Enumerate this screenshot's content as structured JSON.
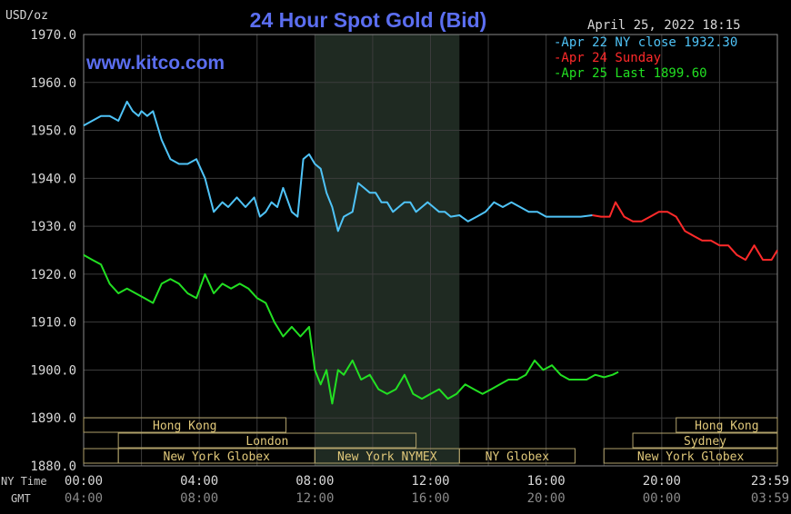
{
  "chart_data": {
    "type": "line",
    "title": "24 Hour Spot Gold (Bid)",
    "watermark": "www.kitco.com",
    "unit_label": "USD/oz",
    "timestamp": "April 25, 2022 18:15",
    "ylim": [
      1880,
      1970
    ],
    "y_ticks": [
      "1970.0",
      "1960.0",
      "1950.0",
      "1940.0",
      "1930.0",
      "1920.0",
      "1910.0",
      "1900.0",
      "1890.0",
      "1880.0"
    ],
    "x_row_label": "NY Time",
    "x_ticks": [
      "00:00",
      "04:00",
      "08:00",
      "12:00",
      "16:00",
      "20:00",
      "23:59"
    ],
    "gmt_row_label": "GMT",
    "gmt_ticks": [
      "04:00",
      "08:00",
      "12:00",
      "16:00",
      "20:00",
      "00:00",
      "03:59"
    ],
    "highlight": [
      8.0,
      13.0
    ],
    "legend": [
      {
        "text": "-Apr 22 NY close 1932.30",
        "color": "#4fc3f7"
      },
      {
        "text": "-Apr 24 Sunday",
        "color": "#ff2a2a"
      },
      {
        "text": "-Apr 25 Last 1899.60",
        "color": "#22e022"
      }
    ],
    "series": [
      {
        "name": "Apr 22",
        "color": "#4fc3f7",
        "x": [
          0,
          0.3,
          0.6,
          0.9,
          1.2,
          1.5,
          1.7,
          1.9,
          2.0,
          2.2,
          2.4,
          2.7,
          3.0,
          3.3,
          3.6,
          3.9,
          4.2,
          4.5,
          4.8,
          5.0,
          5.3,
          5.6,
          5.9,
          6.1,
          6.3,
          6.5,
          6.7,
          6.9,
          7.2,
          7.4,
          7.6,
          7.8,
          8.0,
          8.2,
          8.4,
          8.6,
          8.8,
          9.0,
          9.3,
          9.5,
          9.7,
          9.9,
          10.1,
          10.3,
          10.5,
          10.7,
          10.9,
          11.1,
          11.3,
          11.5,
          11.7,
          11.9,
          12.1,
          12.3,
          12.5,
          12.7,
          13.0,
          13.3,
          13.6,
          13.9,
          14.2,
          14.5,
          14.8,
          15.1,
          15.4,
          15.7,
          16.0,
          16.3,
          16.6,
          16.9,
          17.2,
          17.6
        ],
        "y": [
          1951,
          1952,
          1953,
          1953,
          1952,
          1956,
          1954,
          1953,
          1954,
          1953,
          1954,
          1948,
          1944,
          1943,
          1943,
          1944,
          1940,
          1933,
          1935,
          1934,
          1936,
          1934,
          1936,
          1932,
          1933,
          1935,
          1934,
          1938,
          1933,
          1932,
          1944,
          1945,
          1943,
          1942,
          1937,
          1934,
          1929,
          1932,
          1933,
          1939,
          1938,
          1937,
          1937,
          1935,
          1935,
          1933,
          1934,
          1935,
          1935,
          1933,
          1934,
          1935,
          1934,
          1933,
          1933,
          1932,
          1932.3,
          1931,
          1932,
          1933,
          1935,
          1934,
          1935,
          1934,
          1933,
          1933,
          1932,
          1932,
          1932,
          1932,
          1932,
          1932.3
        ]
      },
      {
        "name": "Apr 24",
        "color": "#ff2a2a",
        "x": [
          17.6,
          17.9,
          18.2,
          18.4,
          18.7,
          19.0,
          19.3,
          19.6,
          19.9,
          20.2,
          20.5,
          20.8,
          21.1,
          21.4,
          21.7,
          22.0,
          22.3,
          22.6,
          22.9,
          23.2,
          23.5,
          23.8,
          24.0
        ],
        "y": [
          1932.3,
          1932,
          1932,
          1935,
          1932,
          1931,
          1931,
          1932,
          1933,
          1933,
          1932,
          1929,
          1928,
          1927,
          1927,
          1926,
          1926,
          1924,
          1923,
          1926,
          1923,
          1923,
          1925
        ]
      },
      {
        "name": "Apr 25",
        "color": "#22e022",
        "x": [
          0,
          0.3,
          0.6,
          0.9,
          1.2,
          1.5,
          1.8,
          2.1,
          2.4,
          2.7,
          3.0,
          3.3,
          3.6,
          3.9,
          4.2,
          4.5,
          4.8,
          5.1,
          5.4,
          5.7,
          6.0,
          6.3,
          6.6,
          6.9,
          7.2,
          7.5,
          7.8,
          8.0,
          8.2,
          8.4,
          8.6,
          8.8,
          9.0,
          9.3,
          9.6,
          9.9,
          10.2,
          10.5,
          10.8,
          11.1,
          11.4,
          11.7,
          12.0,
          12.3,
          12.6,
          12.9,
          13.2,
          13.5,
          13.8,
          14.1,
          14.4,
          14.7,
          15.0,
          15.3,
          15.6,
          15.9,
          16.2,
          16.5,
          16.8,
          17.1,
          17.4,
          17.7,
          18.0,
          18.3,
          18.5
        ],
        "y": [
          1924,
          1923,
          1922,
          1918,
          1916,
          1917,
          1916,
          1915,
          1914,
          1918,
          1919,
          1918,
          1916,
          1915,
          1920,
          1916,
          1918,
          1917,
          1918,
          1917,
          1915,
          1914,
          1910,
          1907,
          1909,
          1907,
          1909,
          1900,
          1897,
          1900,
          1893,
          1900,
          1899,
          1902,
          1898,
          1899,
          1896,
          1895,
          1896,
          1899,
          1895,
          1894,
          1895,
          1896,
          1894,
          1895,
          1897,
          1896,
          1895,
          1896,
          1897,
          1898,
          1898,
          1899,
          1902,
          1900,
          1901,
          1899,
          1898,
          1898,
          1898,
          1899,
          1898.5,
          1899,
          1899.6
        ]
      }
    ],
    "session_rows": [
      [
        {
          "label": "Hong Kong",
          "start": 0,
          "end": 7.0
        },
        {
          "label": "Hong Kong",
          "start": 20.5,
          "end": 24.0
        }
      ],
      [
        {
          "label": "London",
          "start": 1.2,
          "end": 11.5
        },
        {
          "label": "Sydney",
          "start": 19.0,
          "end": 24.0
        }
      ],
      [
        {
          "label": "",
          "start": 0,
          "end": 1.2
        },
        {
          "label": "New York Globex",
          "start": 1.2,
          "end": 8.0
        },
        {
          "label": "New York NYMEX",
          "start": 8.0,
          "end": 13.0
        },
        {
          "label": "NY Globex",
          "start": 13.0,
          "end": 17.0
        },
        {
          "label": "New York Globex",
          "start": 18.0,
          "end": 24.0
        }
      ]
    ]
  }
}
